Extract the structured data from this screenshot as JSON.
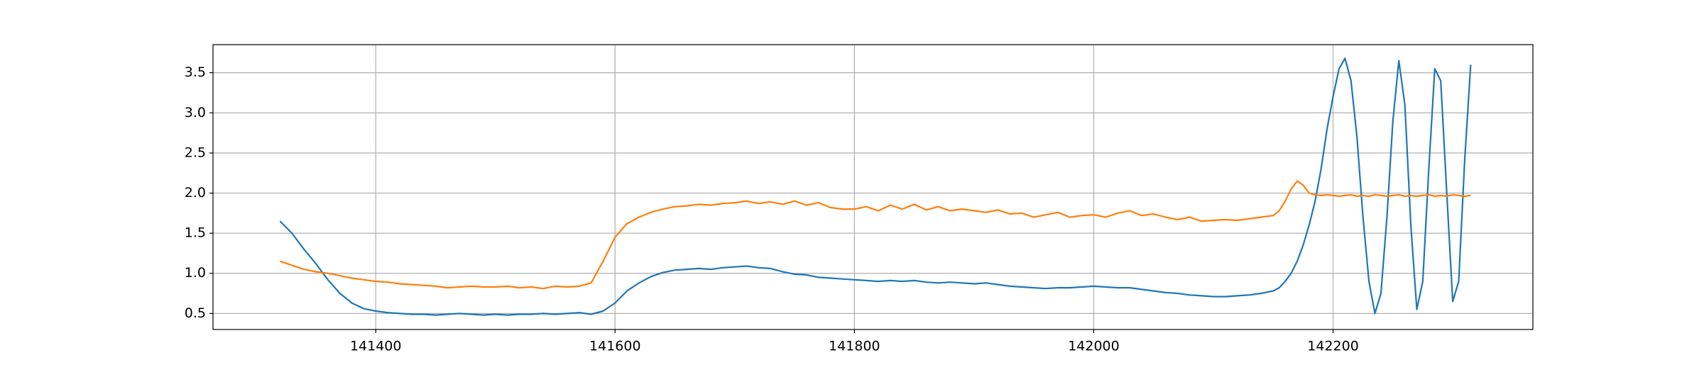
{
  "chart_data": {
    "type": "line",
    "x": [
      141320,
      141330,
      141340,
      141350,
      141360,
      141370,
      141380,
      141390,
      141400,
      141410,
      141420,
      141430,
      141440,
      141450,
      141460,
      141470,
      141480,
      141490,
      141500,
      141510,
      141520,
      141530,
      141540,
      141550,
      141560,
      141570,
      141580,
      141590,
      141600,
      141610,
      141620,
      141630,
      141640,
      141650,
      141660,
      141670,
      141680,
      141690,
      141700,
      141710,
      141720,
      141730,
      141740,
      141750,
      141760,
      141770,
      141780,
      141790,
      141800,
      141810,
      141820,
      141830,
      141840,
      141850,
      141860,
      141870,
      141880,
      141890,
      141900,
      141910,
      141920,
      141930,
      141940,
      141950,
      141960,
      141970,
      141980,
      141990,
      142000,
      142010,
      142020,
      142030,
      142040,
      142050,
      142060,
      142070,
      142080,
      142090,
      142100,
      142110,
      142120,
      142130,
      142140,
      142150,
      142155,
      142160,
      142165,
      142170,
      142175,
      142180,
      142185,
      142190,
      142195,
      142200,
      142205,
      142210,
      142215,
      142220,
      142225,
      142230,
      142235,
      142240,
      142245,
      142250,
      142255,
      142260,
      142265,
      142270,
      142275,
      142280,
      142285,
      142290,
      142295,
      142300,
      142305,
      142310,
      142315
    ],
    "series": [
      {
        "color": "#1f77b4",
        "values": [
          1.65,
          1.5,
          1.3,
          1.12,
          0.92,
          0.75,
          0.63,
          0.56,
          0.53,
          0.51,
          0.5,
          0.49,
          0.49,
          0.48,
          0.49,
          0.5,
          0.49,
          0.48,
          0.49,
          0.48,
          0.49,
          0.49,
          0.5,
          0.49,
          0.5,
          0.51,
          0.49,
          0.53,
          0.63,
          0.78,
          0.88,
          0.96,
          1.01,
          1.04,
          1.05,
          1.06,
          1.05,
          1.07,
          1.08,
          1.09,
          1.07,
          1.06,
          1.02,
          0.99,
          0.98,
          0.95,
          0.94,
          0.93,
          0.92,
          0.91,
          0.9,
          0.91,
          0.9,
          0.91,
          0.89,
          0.88,
          0.89,
          0.88,
          0.87,
          0.88,
          0.86,
          0.84,
          0.83,
          0.82,
          0.81,
          0.82,
          0.82,
          0.83,
          0.84,
          0.83,
          0.82,
          0.82,
          0.8,
          0.78,
          0.76,
          0.75,
          0.73,
          0.72,
          0.71,
          0.71,
          0.72,
          0.73,
          0.75,
          0.78,
          0.82,
          0.9,
          1.0,
          1.15,
          1.35,
          1.6,
          1.9,
          2.3,
          2.8,
          3.2,
          3.55,
          3.68,
          3.4,
          2.7,
          1.7,
          0.9,
          0.5,
          0.75,
          1.7,
          2.9,
          3.65,
          3.1,
          1.6,
          0.55,
          0.9,
          2.3,
          3.55,
          3.4,
          2.0,
          0.65,
          0.9,
          2.4,
          3.6
        ]
      },
      {
        "color": "#ff7f0e",
        "values": [
          1.15,
          1.1,
          1.05,
          1.02,
          1.0,
          0.97,
          0.94,
          0.92,
          0.9,
          0.89,
          0.87,
          0.86,
          0.85,
          0.84,
          0.82,
          0.83,
          0.84,
          0.83,
          0.83,
          0.84,
          0.82,
          0.83,
          0.81,
          0.84,
          0.83,
          0.84,
          0.88,
          1.15,
          1.45,
          1.62,
          1.7,
          1.76,
          1.8,
          1.83,
          1.84,
          1.86,
          1.85,
          1.87,
          1.88,
          1.9,
          1.87,
          1.89,
          1.86,
          1.9,
          1.85,
          1.88,
          1.82,
          1.8,
          1.8,
          1.83,
          1.78,
          1.85,
          1.8,
          1.86,
          1.79,
          1.83,
          1.78,
          1.8,
          1.78,
          1.76,
          1.79,
          1.74,
          1.75,
          1.7,
          1.73,
          1.76,
          1.7,
          1.72,
          1.73,
          1.7,
          1.75,
          1.78,
          1.72,
          1.74,
          1.7,
          1.67,
          1.7,
          1.65,
          1.66,
          1.67,
          1.66,
          1.68,
          1.7,
          1.72,
          1.78,
          1.9,
          2.05,
          2.15,
          2.1,
          2.0,
          1.98,
          1.97,
          1.98,
          1.97,
          1.96,
          1.97,
          1.98,
          1.96,
          1.97,
          1.96,
          1.98,
          1.97,
          1.96,
          1.97,
          1.98,
          1.96,
          1.97,
          1.96,
          1.97,
          1.98,
          1.96,
          1.97,
          1.96,
          1.98,
          1.97,
          1.96,
          1.97
        ]
      }
    ],
    "xlim": [
      141264,
      142367
    ],
    "ylim": [
      0.3,
      3.85
    ],
    "xticks": [
      141400,
      141600,
      141800,
      142000,
      142200
    ],
    "yticks": [
      0.5,
      {
        "value": 1,
        "label": "1.0"
      },
      1.5,
      {
        "value": 2,
        "label": "2.0"
      },
      2.5,
      {
        "value": 3,
        "label": "3.0"
      },
      3.5
    ],
    "grid": true
  }
}
